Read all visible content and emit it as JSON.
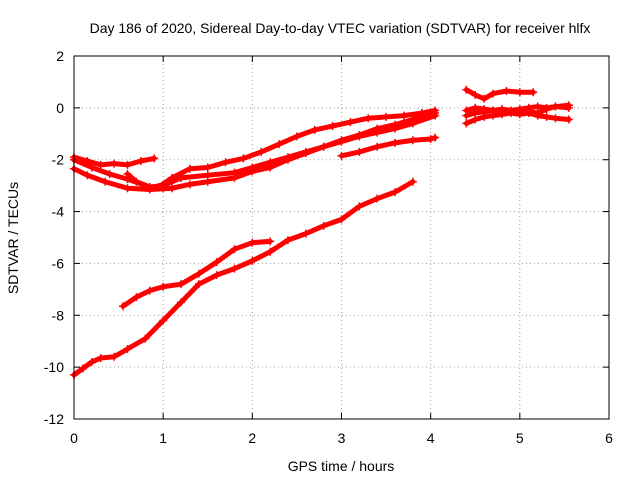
{
  "chart_data": {
    "type": "scatter",
    "title": "Day 186 of 2020, Sidereal Day-to-day VTEC variation (SDTVAR) for receiver hlfx",
    "xlabel": "GPS time / hours",
    "ylabel": "SDTVAR / TECUs",
    "xlim": [
      0,
      6
    ],
    "ylim": [
      -12,
      2
    ],
    "xticks": [
      "0",
      "1",
      "2",
      "3",
      "4",
      "5",
      "6"
    ],
    "yticks": [
      "-12",
      "-10",
      "-8",
      "-6",
      "-4",
      "-2",
      "0",
      "2"
    ],
    "grid": true,
    "legend": "none",
    "marker": "cross",
    "color": "#ff0000",
    "series": [
      {
        "x": [
          0.0,
          0.15,
          0.35,
          0.6,
          0.85,
          1.1,
          1.3,
          1.5,
          1.8,
          2.0,
          2.2,
          2.4,
          2.6,
          2.8,
          3.0,
          3.2,
          3.4,
          3.6,
          3.8,
          4.05
        ],
        "y": [
          -2.35,
          -2.6,
          -2.85,
          -3.1,
          -3.15,
          -3.1,
          -2.95,
          -2.85,
          -2.7,
          -2.45,
          -2.3,
          -2.0,
          -1.75,
          -1.5,
          -1.3,
          -1.1,
          -0.95,
          -0.8,
          -0.6,
          -0.3
        ]
      },
      {
        "x": [
          0.0,
          0.2,
          0.4,
          0.6,
          0.85,
          1.0,
          1.2,
          1.5,
          1.8,
          2.0,
          2.2,
          2.4,
          2.6,
          2.8,
          3.0,
          3.2,
          3.4,
          3.6,
          3.8,
          4.05
        ],
        "y": [
          -2.0,
          -2.3,
          -2.55,
          -2.75,
          -3.05,
          -3.0,
          -2.7,
          -2.6,
          -2.5,
          -2.3,
          -2.1,
          -1.9,
          -1.7,
          -1.5,
          -1.25,
          -1.05,
          -0.8,
          -0.65,
          -0.45,
          -0.2
        ]
      },
      {
        "x": [
          0.95,
          1.1,
          1.3,
          1.5,
          1.7,
          1.9,
          2.1,
          2.3,
          2.5,
          2.7,
          2.9,
          3.1,
          3.3,
          3.5,
          3.7,
          3.9,
          4.05
        ],
        "y": [
          -3.05,
          -2.7,
          -2.35,
          -2.3,
          -2.1,
          -1.95,
          -1.7,
          -1.4,
          -1.1,
          -0.85,
          -0.7,
          -0.55,
          -0.4,
          -0.35,
          -0.3,
          -0.2,
          -0.1
        ]
      },
      {
        "x": [
          0.0,
          0.15,
          0.3,
          0.45,
          0.6,
          0.75,
          0.9
        ],
        "y": [
          -1.9,
          -2.05,
          -2.2,
          -2.15,
          -2.2,
          -2.05,
          -1.95
        ]
      },
      {
        "x": [
          0.6,
          0.7,
          0.85,
          1.0
        ],
        "y": [
          -2.55,
          -2.85,
          -3.05,
          -3.1
        ]
      },
      {
        "x": [
          3.0,
          3.2,
          3.4,
          3.6,
          3.8,
          4.0,
          4.05
        ],
        "y": [
          -1.85,
          -1.7,
          -1.5,
          -1.35,
          -1.25,
          -1.2,
          -1.15
        ]
      },
      {
        "x": [
          0.0,
          0.1,
          0.2,
          0.3,
          0.45,
          0.6,
          0.8,
          1.0,
          1.2,
          1.4,
          1.6,
          1.8,
          2.0,
          2.2,
          2.4,
          2.6,
          2.8,
          3.0,
          3.2,
          3.4,
          3.6,
          3.8
        ],
        "y": [
          -10.3,
          -10.05,
          -9.8,
          -9.65,
          -9.6,
          -9.3,
          -8.9,
          -8.2,
          -7.5,
          -6.8,
          -6.45,
          -6.2,
          -5.9,
          -5.55,
          -5.1,
          -4.85,
          -4.55,
          -4.3,
          -3.8,
          -3.5,
          -3.25,
          -2.85
        ]
      },
      {
        "x": [
          0.55,
          0.7,
          0.85,
          1.0,
          1.2,
          1.4,
          1.6,
          1.8,
          2.0,
          2.2
        ],
        "y": [
          -7.65,
          -7.3,
          -7.05,
          -6.9,
          -6.8,
          -6.4,
          -5.95,
          -5.45,
          -5.2,
          -5.15
        ]
      },
      {
        "x": [
          4.4,
          4.5,
          4.6,
          4.7,
          4.85,
          5.0,
          5.15
        ],
        "y": [
          0.7,
          0.5,
          0.35,
          0.55,
          0.65,
          0.6,
          0.6
        ]
      },
      {
        "x": [
          4.4,
          4.5,
          4.6,
          4.7,
          4.8,
          4.9,
          5.0,
          5.1,
          5.2,
          5.3,
          5.4,
          5.55
        ],
        "y": [
          -0.6,
          -0.45,
          -0.35,
          -0.3,
          -0.25,
          -0.2,
          -0.25,
          -0.2,
          -0.3,
          -0.35,
          -0.4,
          -0.45
        ]
      },
      {
        "x": [
          4.4,
          4.5,
          4.6,
          4.7,
          4.8,
          4.9,
          5.0,
          5.1,
          5.2,
          5.3,
          5.4,
          5.55
        ],
        "y": [
          -0.3,
          -0.2,
          -0.15,
          -0.1,
          -0.05,
          -0.1,
          -0.05,
          0.0,
          0.05,
          0.0,
          0.05,
          0.1
        ]
      },
      {
        "x": [
          4.4,
          4.5,
          4.6,
          4.7,
          4.8,
          4.9,
          5.0,
          5.1,
          5.2,
          5.3,
          5.4,
          5.55
        ],
        "y": [
          -0.1,
          0.0,
          -0.05,
          -0.1,
          -0.2,
          -0.15,
          -0.1,
          -0.15,
          -0.2,
          -0.05,
          0.05,
          0.0
        ]
      }
    ]
  }
}
